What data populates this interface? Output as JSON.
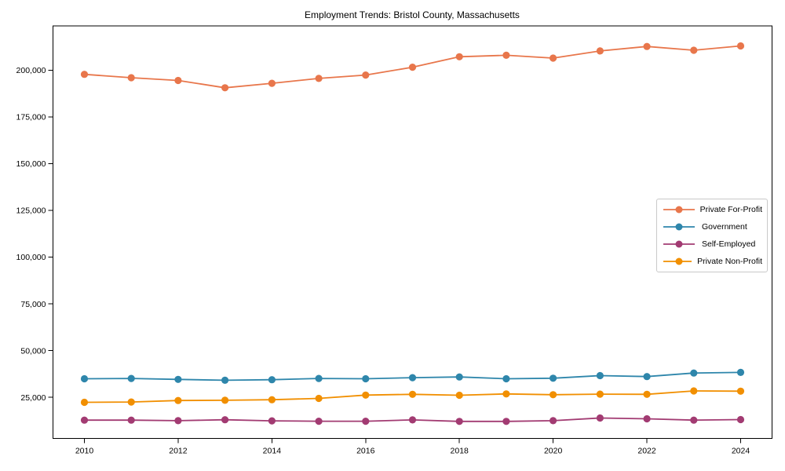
{
  "chart_data": {
    "type": "line",
    "title": "Employment Trends: Bristol County, Massachusetts",
    "xlabel": "",
    "ylabel": "",
    "x": [
      2010,
      2011,
      2012,
      2013,
      2014,
      2015,
      2016,
      2017,
      2018,
      2019,
      2020,
      2021,
      2022,
      2023,
      2024
    ],
    "series": [
      {
        "name": "Private For-Profit",
        "color": "#E8764B",
        "values": [
          197800,
          196000,
          194500,
          190600,
          193000,
          195600,
          197400,
          201600,
          207200,
          208000,
          206500,
          210300,
          212700,
          210700,
          213000
        ]
      },
      {
        "name": "Government",
        "color": "#2E86AB",
        "values": [
          34900,
          35100,
          34600,
          34100,
          34400,
          35100,
          34900,
          35500,
          35900,
          34900,
          35200,
          36600,
          36100,
          38000,
          38300
        ]
      },
      {
        "name": "Self-Employed",
        "color": "#A23B72",
        "values": [
          12800,
          12800,
          12500,
          13000,
          12400,
          12200,
          12200,
          12900,
          12100,
          12100,
          12500,
          13900,
          13500,
          12800,
          13100
        ]
      },
      {
        "name": "Private Non-Profit",
        "color": "#F18F01",
        "values": [
          22300,
          22500,
          23300,
          23400,
          23700,
          24400,
          26200,
          26600,
          26100,
          26800,
          26400,
          26700,
          26600,
          28400,
          28300
        ]
      }
    ],
    "xticks": [
      2010,
      2012,
      2014,
      2016,
      2018,
      2020,
      2022,
      2024
    ],
    "xtick_labels": [
      "2010",
      "2012",
      "2014",
      "2016",
      "2018",
      "2020",
      "2022",
      "2024"
    ],
    "yticks": [
      25000,
      50000,
      75000,
      100000,
      125000,
      150000,
      175000,
      200000
    ],
    "ytick_labels": [
      "25,000",
      "50,000",
      "75,000",
      "100,000",
      "125,000",
      "150,000",
      "175,000",
      "200,000"
    ],
    "xlim": [
      2009.33,
      2024.67
    ],
    "ylim": [
      3000,
      223700
    ],
    "grid": false,
    "legend_position": "center-right",
    "marker": "circle"
  }
}
